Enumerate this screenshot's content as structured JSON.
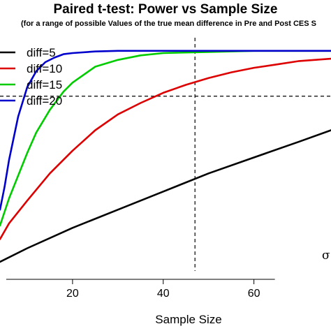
{
  "chart_data": {
    "type": "line",
    "title": "Paired t-test: Power vs Sample Size",
    "subtitle": "(for a range of possible Values of the true mean difference in Pre and Post CES S",
    "xlabel": "Sample Size",
    "ylabel": "",
    "xlim": [
      4,
      77
    ],
    "ylim": [
      0.03,
      1.07
    ],
    "x_ticks": [
      20,
      40,
      60
    ],
    "grid": false,
    "legend_position": "top-left",
    "annotation": "σ",
    "reference_lines": {
      "horizontal_y": 0.8,
      "vertical_x": 47
    },
    "series": [
      {
        "name": "diff=5",
        "color": "#000000",
        "x": [
          4,
          10,
          20,
          30,
          40,
          50,
          60,
          70,
          77
        ],
        "y": [
          0.07,
          0.13,
          0.22,
          0.3,
          0.38,
          0.46,
          0.53,
          0.6,
          0.65
        ]
      },
      {
        "name": "diff=10",
        "color": "#dd0000",
        "x": [
          4,
          6,
          10,
          15,
          20,
          25,
          30,
          35,
          40,
          45,
          50,
          55,
          60,
          65,
          70,
          77
        ],
        "y": [
          0.17,
          0.24,
          0.34,
          0.46,
          0.56,
          0.65,
          0.72,
          0.77,
          0.815,
          0.85,
          0.88,
          0.905,
          0.925,
          0.94,
          0.955,
          0.965
        ]
      },
      {
        "name": "diff=15",
        "color": "#00cc00",
        "x": [
          4,
          6,
          8,
          10,
          12,
          15,
          18,
          20,
          25,
          30,
          35,
          40,
          50,
          60,
          77
        ],
        "y": [
          0.23,
          0.35,
          0.45,
          0.55,
          0.64,
          0.74,
          0.82,
          0.86,
          0.93,
          0.96,
          0.98,
          0.99,
          0.995,
          1.0,
          1.0
        ]
      },
      {
        "name": "diff=20",
        "color": "#0000cc",
        "x": [
          4,
          5,
          6,
          8,
          10,
          12,
          14,
          16,
          18,
          20,
          25,
          30,
          40,
          60,
          77
        ],
        "y": [
          0.3,
          0.4,
          0.52,
          0.71,
          0.84,
          0.91,
          0.95,
          0.97,
          0.985,
          0.99,
          0.997,
          1.0,
          1.0,
          1.0,
          1.0
        ]
      }
    ]
  }
}
